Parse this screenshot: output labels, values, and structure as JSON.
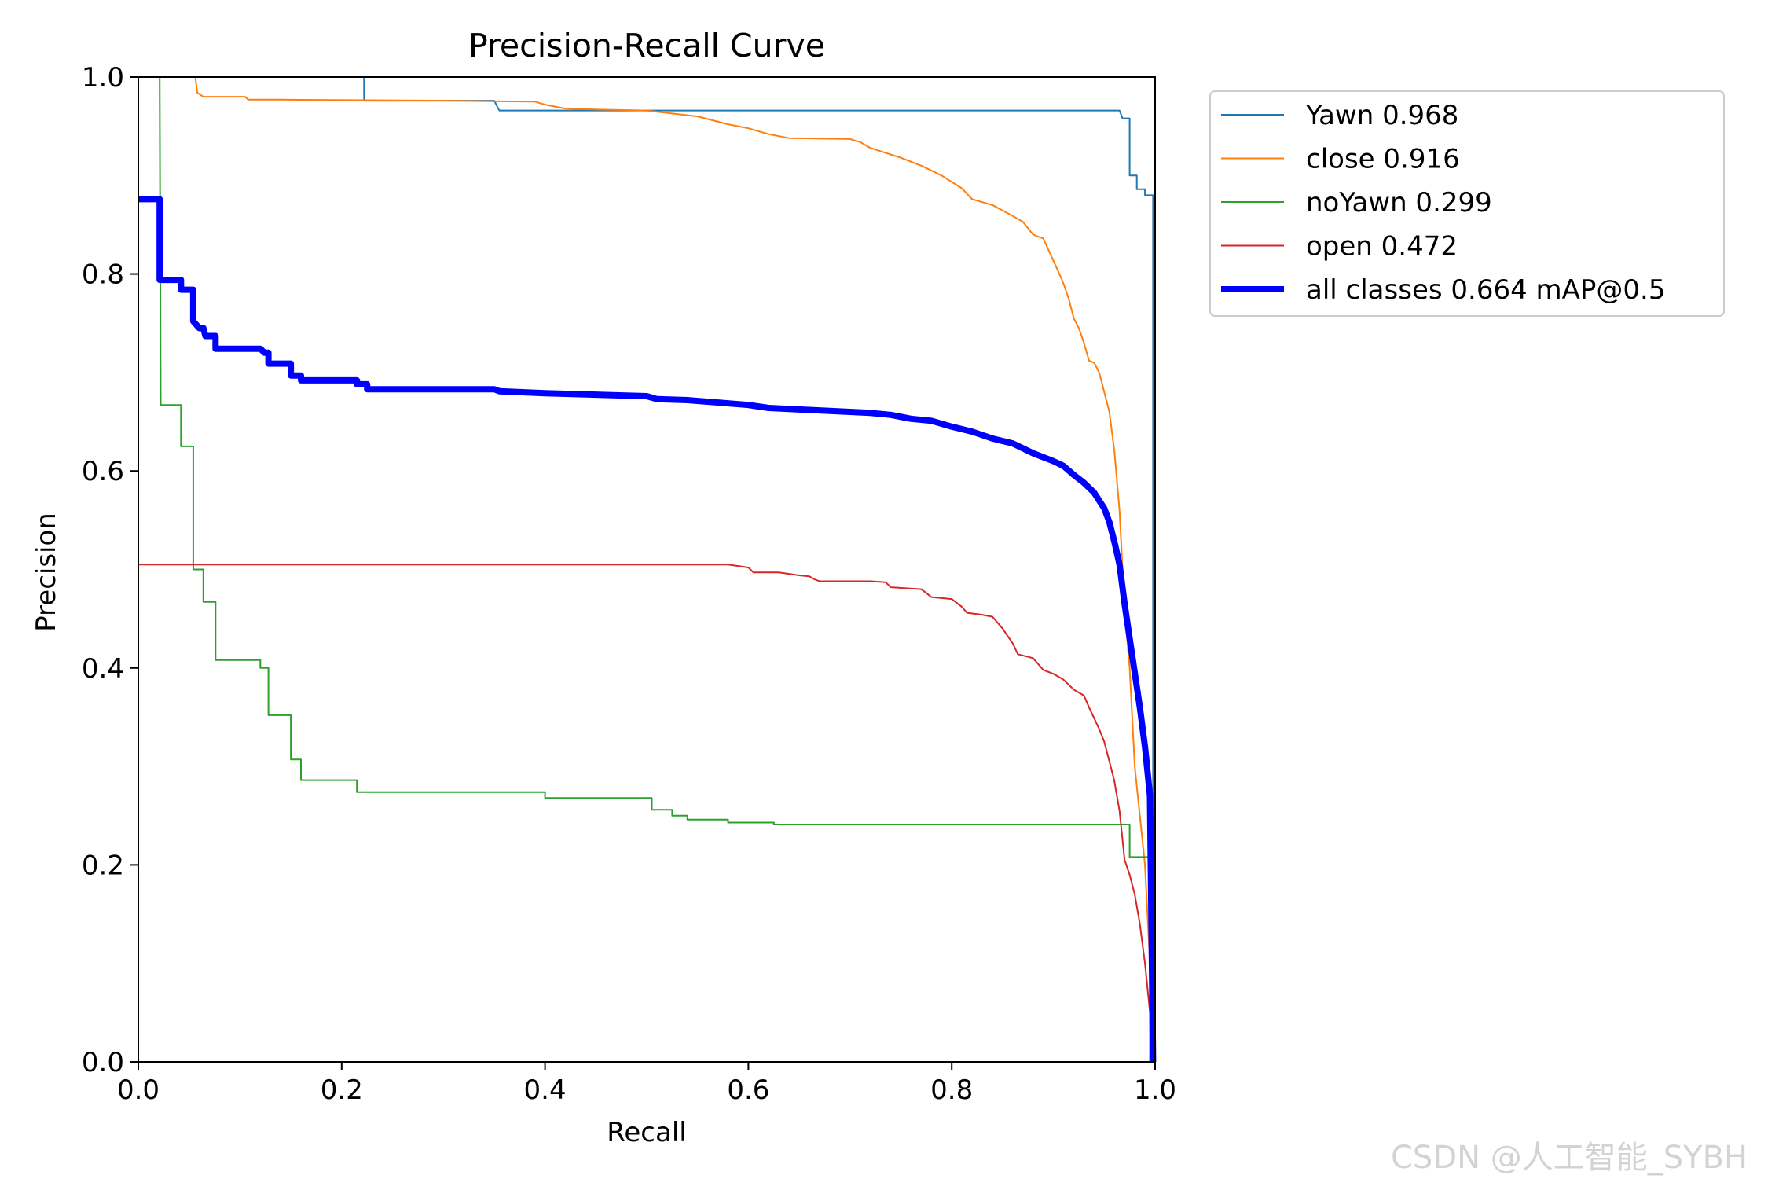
{
  "watermark": "CSDN @人工智能_SYBH",
  "chart_data": {
    "type": "line",
    "title": "Precision-Recall Curve",
    "xlabel": "Recall",
    "ylabel": "Precision",
    "xlim": [
      0,
      1
    ],
    "ylim": [
      0,
      1
    ],
    "xticks": [
      "0.0",
      "0.2",
      "0.4",
      "0.6",
      "0.8",
      "1.0"
    ],
    "yticks": [
      "0.0",
      "0.2",
      "0.4",
      "0.6",
      "0.8",
      "1.0"
    ],
    "grid": false,
    "legend_position": "outside-top-right",
    "series": [
      {
        "name": "Yawn 0.968",
        "color": "#1f77b4",
        "width": 2,
        "points": [
          [
            0,
            1.0
          ],
          [
            0.222,
            1.0
          ],
          [
            0.222,
            0.976
          ],
          [
            0.35,
            0.976
          ],
          [
            0.355,
            0.966
          ],
          [
            0.965,
            0.966
          ],
          [
            0.968,
            0.958
          ],
          [
            0.975,
            0.958
          ],
          [
            0.975,
            0.9
          ],
          [
            0.982,
            0.9
          ],
          [
            0.982,
            0.886
          ],
          [
            0.99,
            0.886
          ],
          [
            0.99,
            0.88
          ],
          [
            0.998,
            0.88
          ],
          [
            0.998,
            0.0
          ]
        ]
      },
      {
        "name": "close 0.916",
        "color": "#ff7f0e",
        "width": 2,
        "points": [
          [
            0.056,
            1.0
          ],
          [
            0.058,
            0.984
          ],
          [
            0.064,
            0.98
          ],
          [
            0.105,
            0.98
          ],
          [
            0.108,
            0.977
          ],
          [
            0.14,
            0.977
          ],
          [
            0.3,
            0.976
          ],
          [
            0.39,
            0.975
          ],
          [
            0.4,
            0.972
          ],
          [
            0.42,
            0.968
          ],
          [
            0.45,
            0.967
          ],
          [
            0.5,
            0.966
          ],
          [
            0.55,
            0.96
          ],
          [
            0.58,
            0.952
          ],
          [
            0.6,
            0.948
          ],
          [
            0.62,
            0.942
          ],
          [
            0.64,
            0.938
          ],
          [
            0.7,
            0.937
          ],
          [
            0.71,
            0.934
          ],
          [
            0.72,
            0.928
          ],
          [
            0.75,
            0.918
          ],
          [
            0.77,
            0.91
          ],
          [
            0.79,
            0.9
          ],
          [
            0.81,
            0.887
          ],
          [
            0.82,
            0.876
          ],
          [
            0.84,
            0.87
          ],
          [
            0.86,
            0.859
          ],
          [
            0.87,
            0.853
          ],
          [
            0.88,
            0.84
          ],
          [
            0.89,
            0.836
          ],
          [
            0.905,
            0.802
          ],
          [
            0.91,
            0.79
          ],
          [
            0.915,
            0.775
          ],
          [
            0.92,
            0.755
          ],
          [
            0.925,
            0.745
          ],
          [
            0.93,
            0.73
          ],
          [
            0.935,
            0.712
          ],
          [
            0.94,
            0.71
          ],
          [
            0.945,
            0.7
          ],
          [
            0.95,
            0.68
          ],
          [
            0.955,
            0.66
          ],
          [
            0.96,
            0.62
          ],
          [
            0.965,
            0.56
          ],
          [
            0.97,
            0.46
          ],
          [
            0.975,
            0.4
          ],
          [
            0.98,
            0.3
          ],
          [
            0.99,
            0.2
          ],
          [
            0.995,
            0.1
          ],
          [
            0.998,
            0.0
          ]
        ]
      },
      {
        "name": "noYawn 0.299",
        "color": "#2ca02c",
        "width": 2,
        "points": [
          [
            0.021,
            1.0
          ],
          [
            0.022,
            0.667
          ],
          [
            0.042,
            0.667
          ],
          [
            0.042,
            0.625
          ],
          [
            0.054,
            0.625
          ],
          [
            0.054,
            0.5
          ],
          [
            0.064,
            0.5
          ],
          [
            0.064,
            0.467
          ],
          [
            0.076,
            0.467
          ],
          [
            0.076,
            0.408
          ],
          [
            0.12,
            0.408
          ],
          [
            0.12,
            0.4
          ],
          [
            0.128,
            0.4
          ],
          [
            0.128,
            0.352
          ],
          [
            0.15,
            0.352
          ],
          [
            0.15,
            0.307
          ],
          [
            0.16,
            0.307
          ],
          [
            0.16,
            0.286
          ],
          [
            0.215,
            0.286
          ],
          [
            0.215,
            0.274
          ],
          [
            0.4,
            0.274
          ],
          [
            0.4,
            0.268
          ],
          [
            0.505,
            0.268
          ],
          [
            0.505,
            0.256
          ],
          [
            0.525,
            0.256
          ],
          [
            0.525,
            0.25
          ],
          [
            0.54,
            0.25
          ],
          [
            0.54,
            0.246
          ],
          [
            0.58,
            0.246
          ],
          [
            0.58,
            0.243
          ],
          [
            0.625,
            0.243
          ],
          [
            0.625,
            0.241
          ],
          [
            0.975,
            0.241
          ],
          [
            0.975,
            0.208
          ],
          [
            0.995,
            0.208
          ],
          [
            0.995,
            0.0
          ]
        ]
      },
      {
        "name": "open 0.472",
        "color": "#d62728",
        "width": 2,
        "points": [
          [
            0,
            0.505
          ],
          [
            0.58,
            0.505
          ],
          [
            0.6,
            0.502
          ],
          [
            0.605,
            0.497
          ],
          [
            0.63,
            0.497
          ],
          [
            0.65,
            0.494
          ],
          [
            0.66,
            0.493
          ],
          [
            0.665,
            0.49
          ],
          [
            0.67,
            0.488
          ],
          [
            0.72,
            0.488
          ],
          [
            0.735,
            0.487
          ],
          [
            0.74,
            0.482
          ],
          [
            0.77,
            0.48
          ],
          [
            0.78,
            0.472
          ],
          [
            0.8,
            0.47
          ],
          [
            0.81,
            0.462
          ],
          [
            0.815,
            0.456
          ],
          [
            0.83,
            0.454
          ],
          [
            0.84,
            0.452
          ],
          [
            0.85,
            0.44
          ],
          [
            0.86,
            0.425
          ],
          [
            0.865,
            0.414
          ],
          [
            0.88,
            0.41
          ],
          [
            0.89,
            0.398
          ],
          [
            0.9,
            0.394
          ],
          [
            0.91,
            0.388
          ],
          [
            0.92,
            0.378
          ],
          [
            0.93,
            0.372
          ],
          [
            0.935,
            0.36
          ],
          [
            0.945,
            0.338
          ],
          [
            0.95,
            0.325
          ],
          [
            0.955,
            0.305
          ],
          [
            0.96,
            0.285
          ],
          [
            0.965,
            0.255
          ],
          [
            0.97,
            0.205
          ],
          [
            0.975,
            0.19
          ],
          [
            0.98,
            0.17
          ],
          [
            0.985,
            0.14
          ],
          [
            0.99,
            0.1
          ],
          [
            0.995,
            0.05
          ],
          [
            0.998,
            0.0
          ]
        ]
      },
      {
        "name": "all classes 0.664 mAP@0.5",
        "color": "#0000ff",
        "width": 8,
        "points": [
          [
            0,
            0.876
          ],
          [
            0.021,
            0.876
          ],
          [
            0.021,
            0.794
          ],
          [
            0.042,
            0.794
          ],
          [
            0.042,
            0.784
          ],
          [
            0.054,
            0.784
          ],
          [
            0.054,
            0.752
          ],
          [
            0.06,
            0.745
          ],
          [
            0.064,
            0.745
          ],
          [
            0.066,
            0.737
          ],
          [
            0.076,
            0.737
          ],
          [
            0.076,
            0.724
          ],
          [
            0.12,
            0.724
          ],
          [
            0.124,
            0.72
          ],
          [
            0.128,
            0.72
          ],
          [
            0.128,
            0.709
          ],
          [
            0.15,
            0.709
          ],
          [
            0.15,
            0.697
          ],
          [
            0.16,
            0.697
          ],
          [
            0.16,
            0.692
          ],
          [
            0.215,
            0.692
          ],
          [
            0.215,
            0.688
          ],
          [
            0.225,
            0.688
          ],
          [
            0.225,
            0.683
          ],
          [
            0.35,
            0.683
          ],
          [
            0.355,
            0.681
          ],
          [
            0.4,
            0.679
          ],
          [
            0.5,
            0.676
          ],
          [
            0.51,
            0.673
          ],
          [
            0.54,
            0.672
          ],
          [
            0.6,
            0.667
          ],
          [
            0.62,
            0.664
          ],
          [
            0.66,
            0.662
          ],
          [
            0.7,
            0.66
          ],
          [
            0.72,
            0.659
          ],
          [
            0.74,
            0.657
          ],
          [
            0.76,
            0.653
          ],
          [
            0.78,
            0.651
          ],
          [
            0.8,
            0.645
          ],
          [
            0.82,
            0.64
          ],
          [
            0.84,
            0.633
          ],
          [
            0.86,
            0.628
          ],
          [
            0.88,
            0.618
          ],
          [
            0.9,
            0.61
          ],
          [
            0.91,
            0.605
          ],
          [
            0.92,
            0.596
          ],
          [
            0.93,
            0.588
          ],
          [
            0.94,
            0.578
          ],
          [
            0.95,
            0.562
          ],
          [
            0.955,
            0.548
          ],
          [
            0.96,
            0.528
          ],
          [
            0.965,
            0.505
          ],
          [
            0.97,
            0.465
          ],
          [
            0.975,
            0.43
          ],
          [
            0.98,
            0.395
          ],
          [
            0.985,
            0.36
          ],
          [
            0.99,
            0.32
          ],
          [
            0.995,
            0.27
          ],
          [
            0.998,
            0.0
          ]
        ]
      }
    ]
  }
}
